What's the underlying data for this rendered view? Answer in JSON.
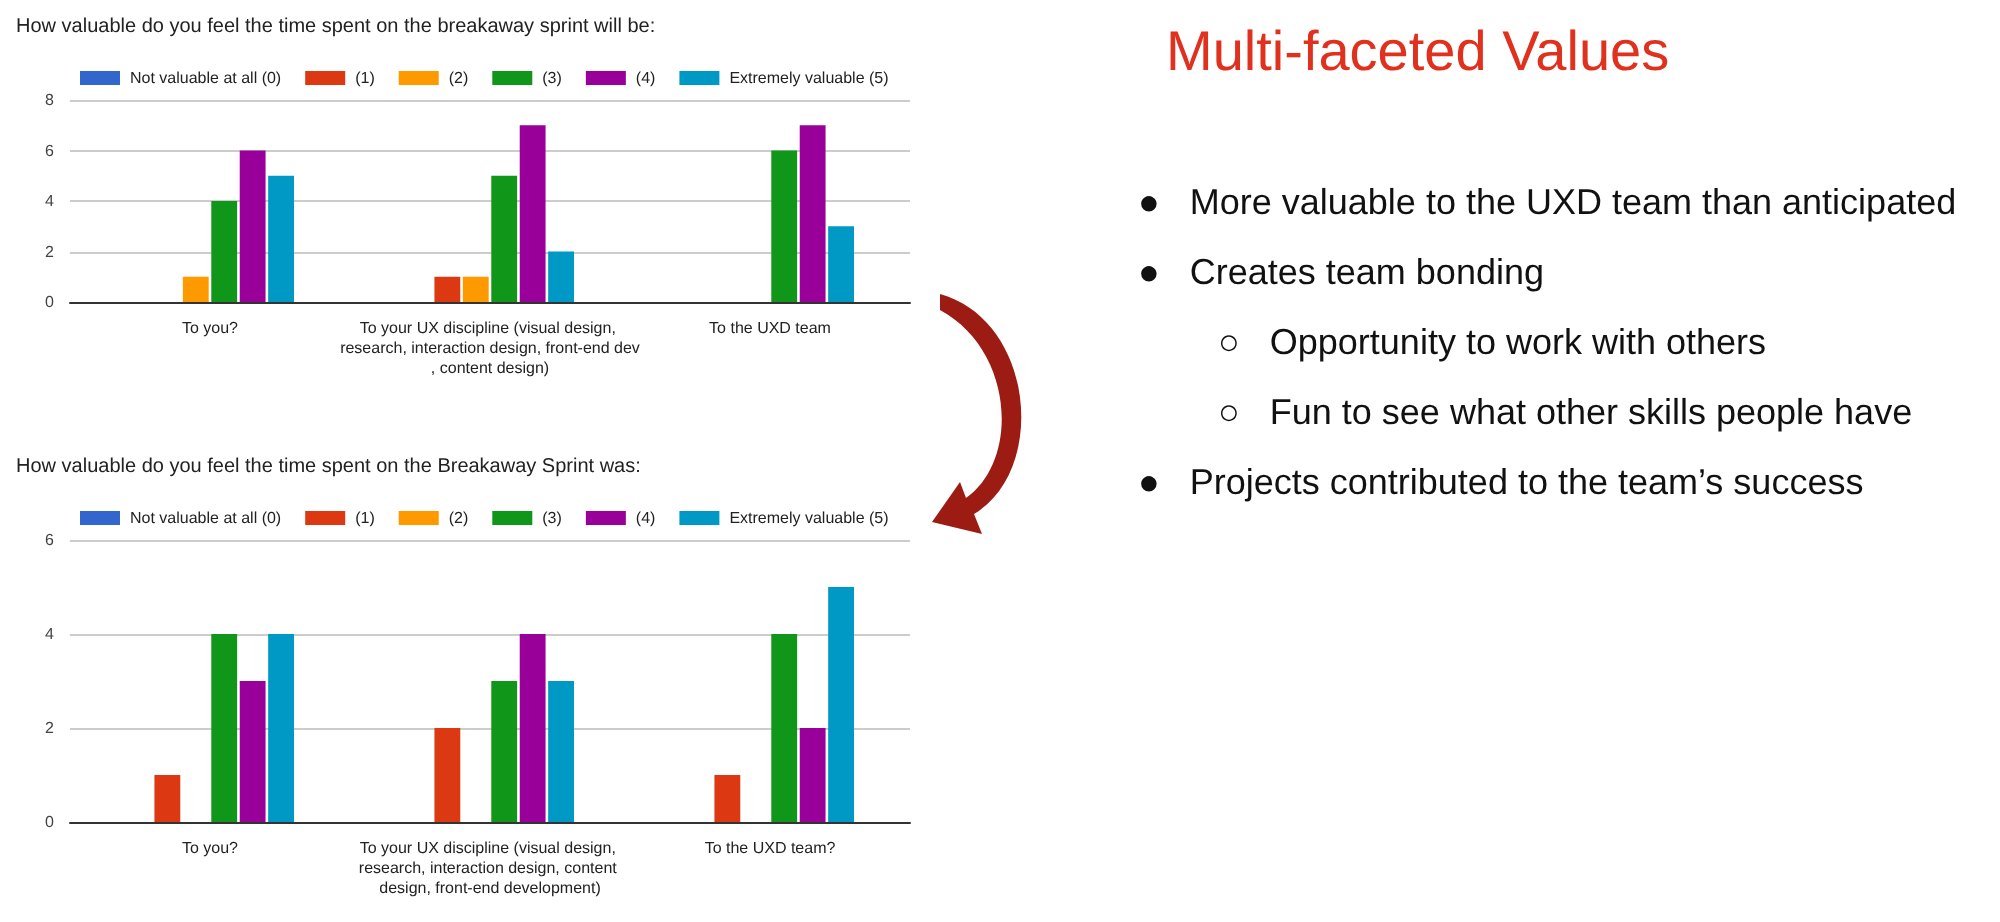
{
  "chart_data": [
    {
      "type": "bar",
      "title": "How valuable do you feel the time spent on the breakaway sprint will be:",
      "categories": [
        "To you?",
        "To your UX discipline (visual design, research, interaction design, front-end dev, content design)",
        "To the UXD team"
      ],
      "series": [
        {
          "name": "Not valuable at all (0)",
          "color": "#3366cc",
          "values": [
            0,
            0,
            0
          ]
        },
        {
          "name": "(1)",
          "color": "#dc3912",
          "values": [
            0,
            1,
            0
          ]
        },
        {
          "name": "(2)",
          "color": "#ff9900",
          "values": [
            1,
            1,
            0
          ]
        },
        {
          "name": "(3)",
          "color": "#109618",
          "values": [
            4,
            5,
            6
          ]
        },
        {
          "name": "(4)",
          "color": "#990099",
          "values": [
            6,
            7,
            7
          ]
        },
        {
          "name": "Extremely valuable (5)",
          "color": "#0099c6",
          "values": [
            5,
            2,
            3
          ]
        }
      ],
      "ylim": [
        0,
        8
      ],
      "yticks": [
        0,
        2,
        4,
        6,
        8
      ],
      "grid": "y",
      "legend": "top left"
    },
    {
      "type": "bar",
      "title": "How valuable do you feel the time spent on the Breakaway Sprint was:",
      "categories": [
        "To you?",
        "To your UX discipline (visual design, research, interaction design, content design, front-end development)",
        "To the UXD team?"
      ],
      "series": [
        {
          "name": "Not valuable at all (0)",
          "color": "#3366cc",
          "values": [
            0,
            0,
            0
          ]
        },
        {
          "name": "(1)",
          "color": "#dc3912",
          "values": [
            1,
            2,
            1
          ]
        },
        {
          "name": "(2)",
          "color": "#ff9900",
          "values": [
            0,
            0,
            0
          ]
        },
        {
          "name": "(3)",
          "color": "#109618",
          "values": [
            4,
            3,
            4
          ]
        },
        {
          "name": "(4)",
          "color": "#990099",
          "values": [
            3,
            4,
            2
          ]
        },
        {
          "name": "Extremely valuable (5)",
          "color": "#0099c6",
          "values": [
            4,
            3,
            5
          ]
        }
      ],
      "ylim": [
        0,
        6
      ],
      "yticks": [
        0,
        2,
        4,
        6
      ],
      "grid": "y",
      "legend": "top left"
    },
    {
      "type": "other",
      "title": "Multi-faceted Values",
      "annotations": [
        "●   More valuable to the UXD team than anticipated",
        "●   Creates team bonding",
        "        ○   Opportunity to work with others",
        "        ○   Fun to see what other skills people have",
        "●   Projects contributed to the team’s success"
      ]
    }
  ]
}
